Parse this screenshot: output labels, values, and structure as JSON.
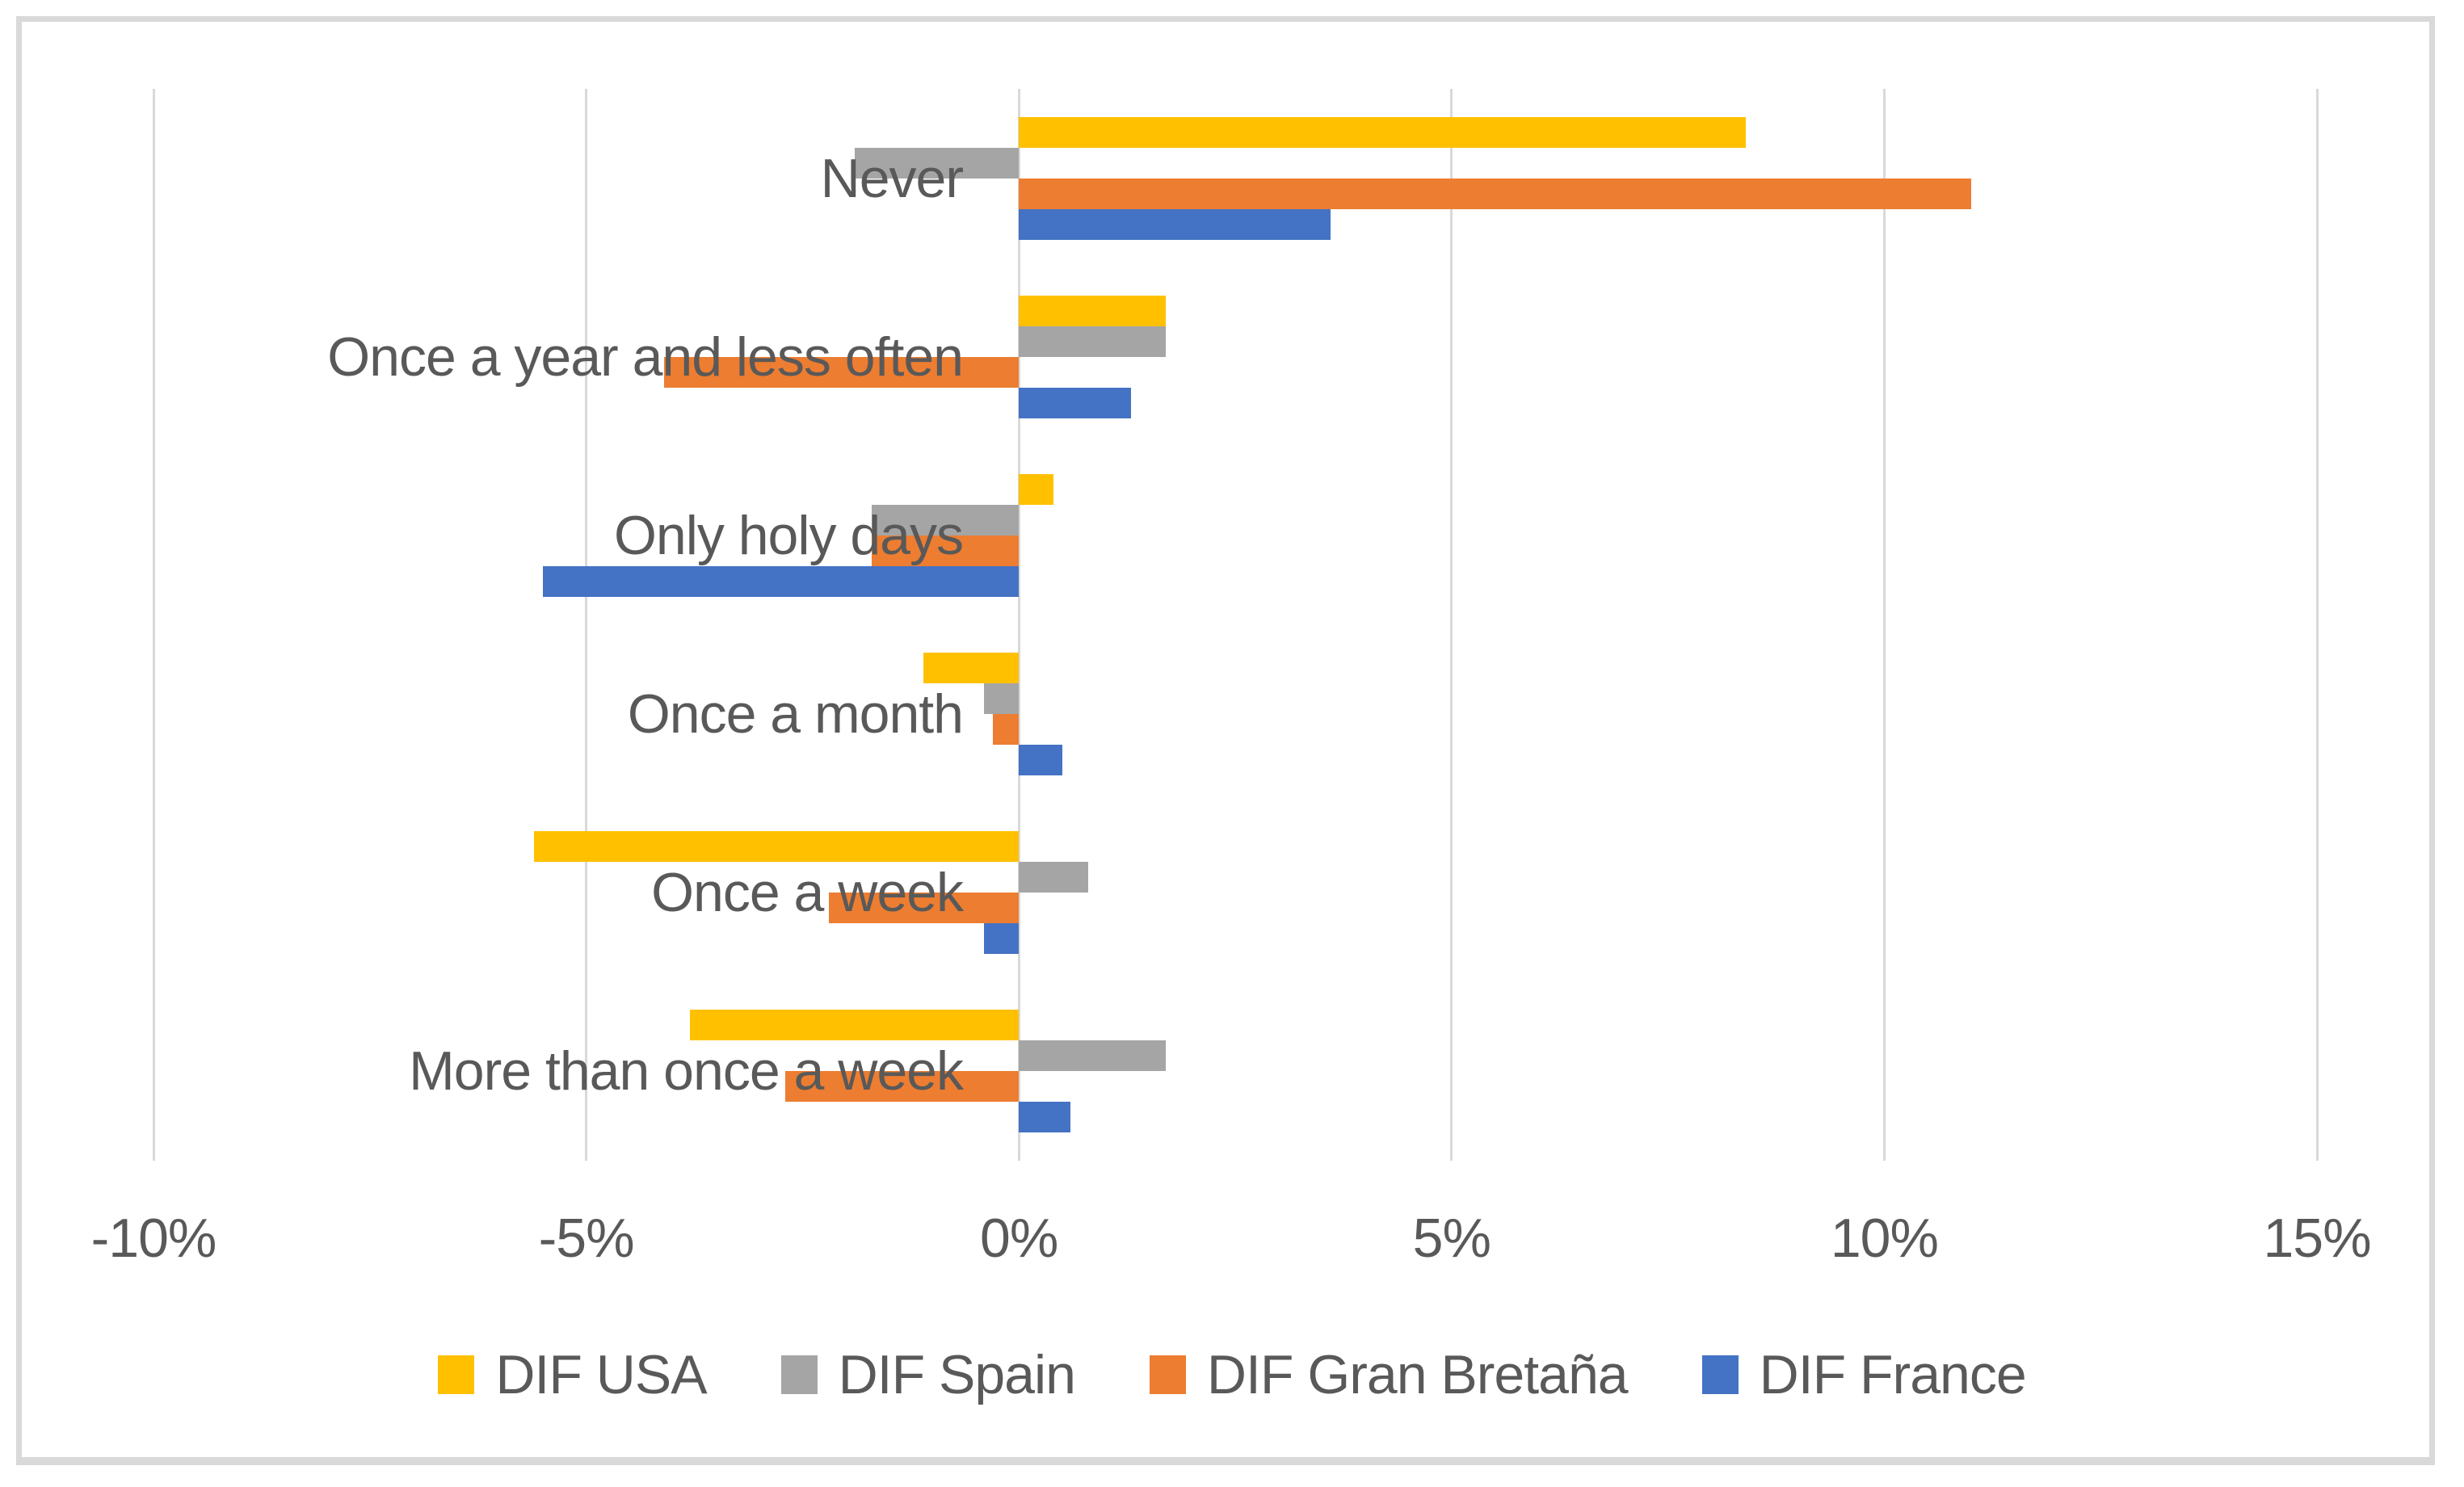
{
  "chart_data": {
    "type": "bar",
    "orientation": "horizontal",
    "title": "",
    "xlabel": "",
    "ylabel": "",
    "grid": true,
    "categories": [
      "Never",
      "Once a year and less often",
      "Only holy days",
      "Once a month",
      "Once a week",
      "More than once a week"
    ],
    "series": [
      {
        "name": "DIF USA",
        "color": "#FFC000",
        "values": [
          8.4,
          1.7,
          0.4,
          -1.1,
          -5.6,
          -3.8
        ]
      },
      {
        "name": "DIF Spain",
        "color": "#A5A5A5",
        "values": [
          -1.9,
          1.7,
          -1.7,
          -0.4,
          0.8,
          1.7
        ]
      },
      {
        "name": "DIF Gran Bretaña",
        "color": "#ED7D31",
        "values": [
          11.0,
          -4.1,
          -1.7,
          -0.3,
          -2.2,
          -2.7
        ]
      },
      {
        "name": "DIF France",
        "color": "#4472C4",
        "values": [
          3.6,
          1.3,
          -5.5,
          0.5,
          -0.4,
          0.6
        ]
      }
    ],
    "x_axis": {
      "min": -10,
      "max": 15,
      "ticks": [
        -10,
        -5,
        0,
        5,
        10,
        15
      ],
      "tick_labels": [
        "-10%",
        "-5%",
        "0%",
        "5%",
        "10%",
        "15%"
      ]
    },
    "legend": {
      "position": "bottom",
      "entries": [
        "DIF USA",
        "DIF Spain",
        "DIF Gran Bretaña",
        "DIF France"
      ]
    }
  },
  "colors": {
    "background": "#FFFFFF",
    "border": "#D9D9D9",
    "gridline": "#D9D9D9",
    "text": "#595959",
    "series_usa": "#FFC000",
    "series_spain": "#A5A5A5",
    "series_gran_bretana": "#ED7D31",
    "series_france": "#4472C4"
  }
}
